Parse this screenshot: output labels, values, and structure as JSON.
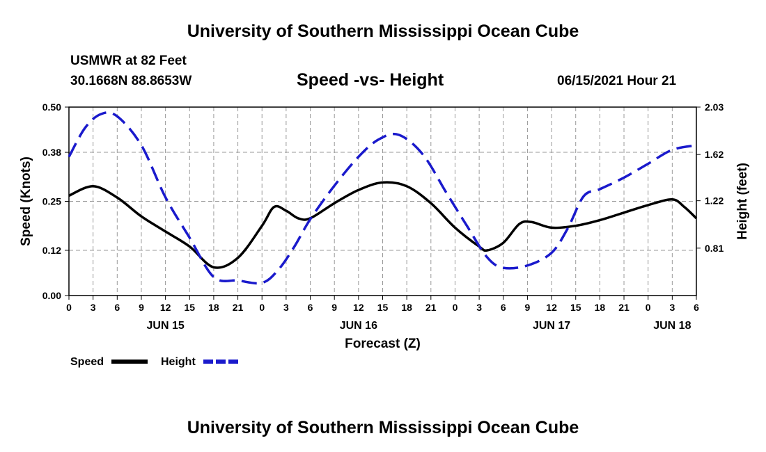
{
  "page": {
    "title_top": "University of Southern Mississippi Ocean Cube",
    "title_bottom": "University of Southern Mississippi Ocean Cube",
    "station_name": "USMWR at 82 Feet",
    "station_coords": "30.1668N  88.8653W",
    "datetime": "06/15/2021 Hour 21"
  },
  "colors": {
    "speed": "#000000",
    "height": "#1a1acc",
    "grid": "#999999"
  },
  "chart_data": {
    "type": "line",
    "title": "Speed -vs- Height",
    "xlabel": "Forecast (Z)",
    "ylabel": "Speed (Knots)",
    "y2label": "Height (feet)",
    "xlim": [
      0,
      78
    ],
    "ylim": [
      0,
      0.5
    ],
    "y2lim": [
      0.4,
      2.03
    ],
    "x_tick_values": [
      0,
      3,
      6,
      9,
      12,
      15,
      18,
      21,
      24,
      27,
      30,
      33,
      36,
      39,
      42,
      45,
      48,
      51,
      54,
      57,
      60,
      63,
      66,
      69,
      72,
      75,
      78
    ],
    "x_tick_labels": [
      "0",
      "3",
      "6",
      "9",
      "12",
      "15",
      "18",
      "21",
      "0",
      "3",
      "6",
      "9",
      "12",
      "15",
      "18",
      "21",
      "0",
      "3",
      "6",
      "9",
      "12",
      "15",
      "18",
      "21",
      "0",
      "3",
      "6"
    ],
    "y_ticks": [
      0.0,
      0.12,
      0.25,
      0.38,
      0.5
    ],
    "y_tick_labels": [
      "0.00",
      "0.12",
      "0.25",
      "0.38",
      "0.50"
    ],
    "y2_ticks": [
      0.81,
      1.22,
      1.62,
      2.03
    ],
    "y2_tick_labels": [
      "0.81",
      "1.22",
      "1.62",
      "2.03"
    ],
    "date_labels": [
      {
        "x": 12,
        "label": "JUN 15"
      },
      {
        "x": 36,
        "label": "JUN 16"
      },
      {
        "x": 60,
        "label": "JUN 17"
      },
      {
        "x": 75,
        "label": "JUN 18"
      }
    ],
    "series": [
      {
        "name": "Speed",
        "axis": "left",
        "style": "solid",
        "x": [
          0,
          3,
          6,
          9,
          12,
          15,
          18,
          21,
          24,
          25.5,
          27,
          28.5,
          30,
          33,
          36,
          39,
          42,
          45,
          48,
          51,
          52,
          54,
          56,
          57.5,
          60,
          63,
          66,
          69,
          72,
          75,
          76.5,
          78
        ],
        "values": [
          0.265,
          0.29,
          0.26,
          0.21,
          0.17,
          0.13,
          0.075,
          0.1,
          0.185,
          0.235,
          0.225,
          0.205,
          0.205,
          0.245,
          0.28,
          0.3,
          0.29,
          0.245,
          0.18,
          0.13,
          0.12,
          0.14,
          0.19,
          0.195,
          0.18,
          0.185,
          0.2,
          0.22,
          0.24,
          0.255,
          0.235,
          0.205
        ]
      },
      {
        "name": "Height",
        "axis": "right",
        "style": "dashed",
        "x": [
          0,
          2,
          4,
          6,
          9,
          12,
          15,
          18,
          21,
          24,
          26,
          28,
          30,
          33,
          36,
          38.5,
          41,
          44,
          47,
          49.5,
          52,
          54,
          57,
          60,
          62,
          64,
          66,
          69,
          72,
          75,
          78
        ],
        "values": [
          1.6,
          1.85,
          1.97,
          1.95,
          1.7,
          1.25,
          0.9,
          0.56,
          0.53,
          0.51,
          0.62,
          0.82,
          1.06,
          1.35,
          1.6,
          1.75,
          1.79,
          1.62,
          1.28,
          1.0,
          0.73,
          0.64,
          0.66,
          0.77,
          0.98,
          1.26,
          1.32,
          1.42,
          1.54,
          1.66,
          1.7
        ]
      }
    ],
    "legend": [
      {
        "label": "Speed",
        "style": "solid"
      },
      {
        "label": "Height",
        "style": "dashed"
      }
    ]
  }
}
